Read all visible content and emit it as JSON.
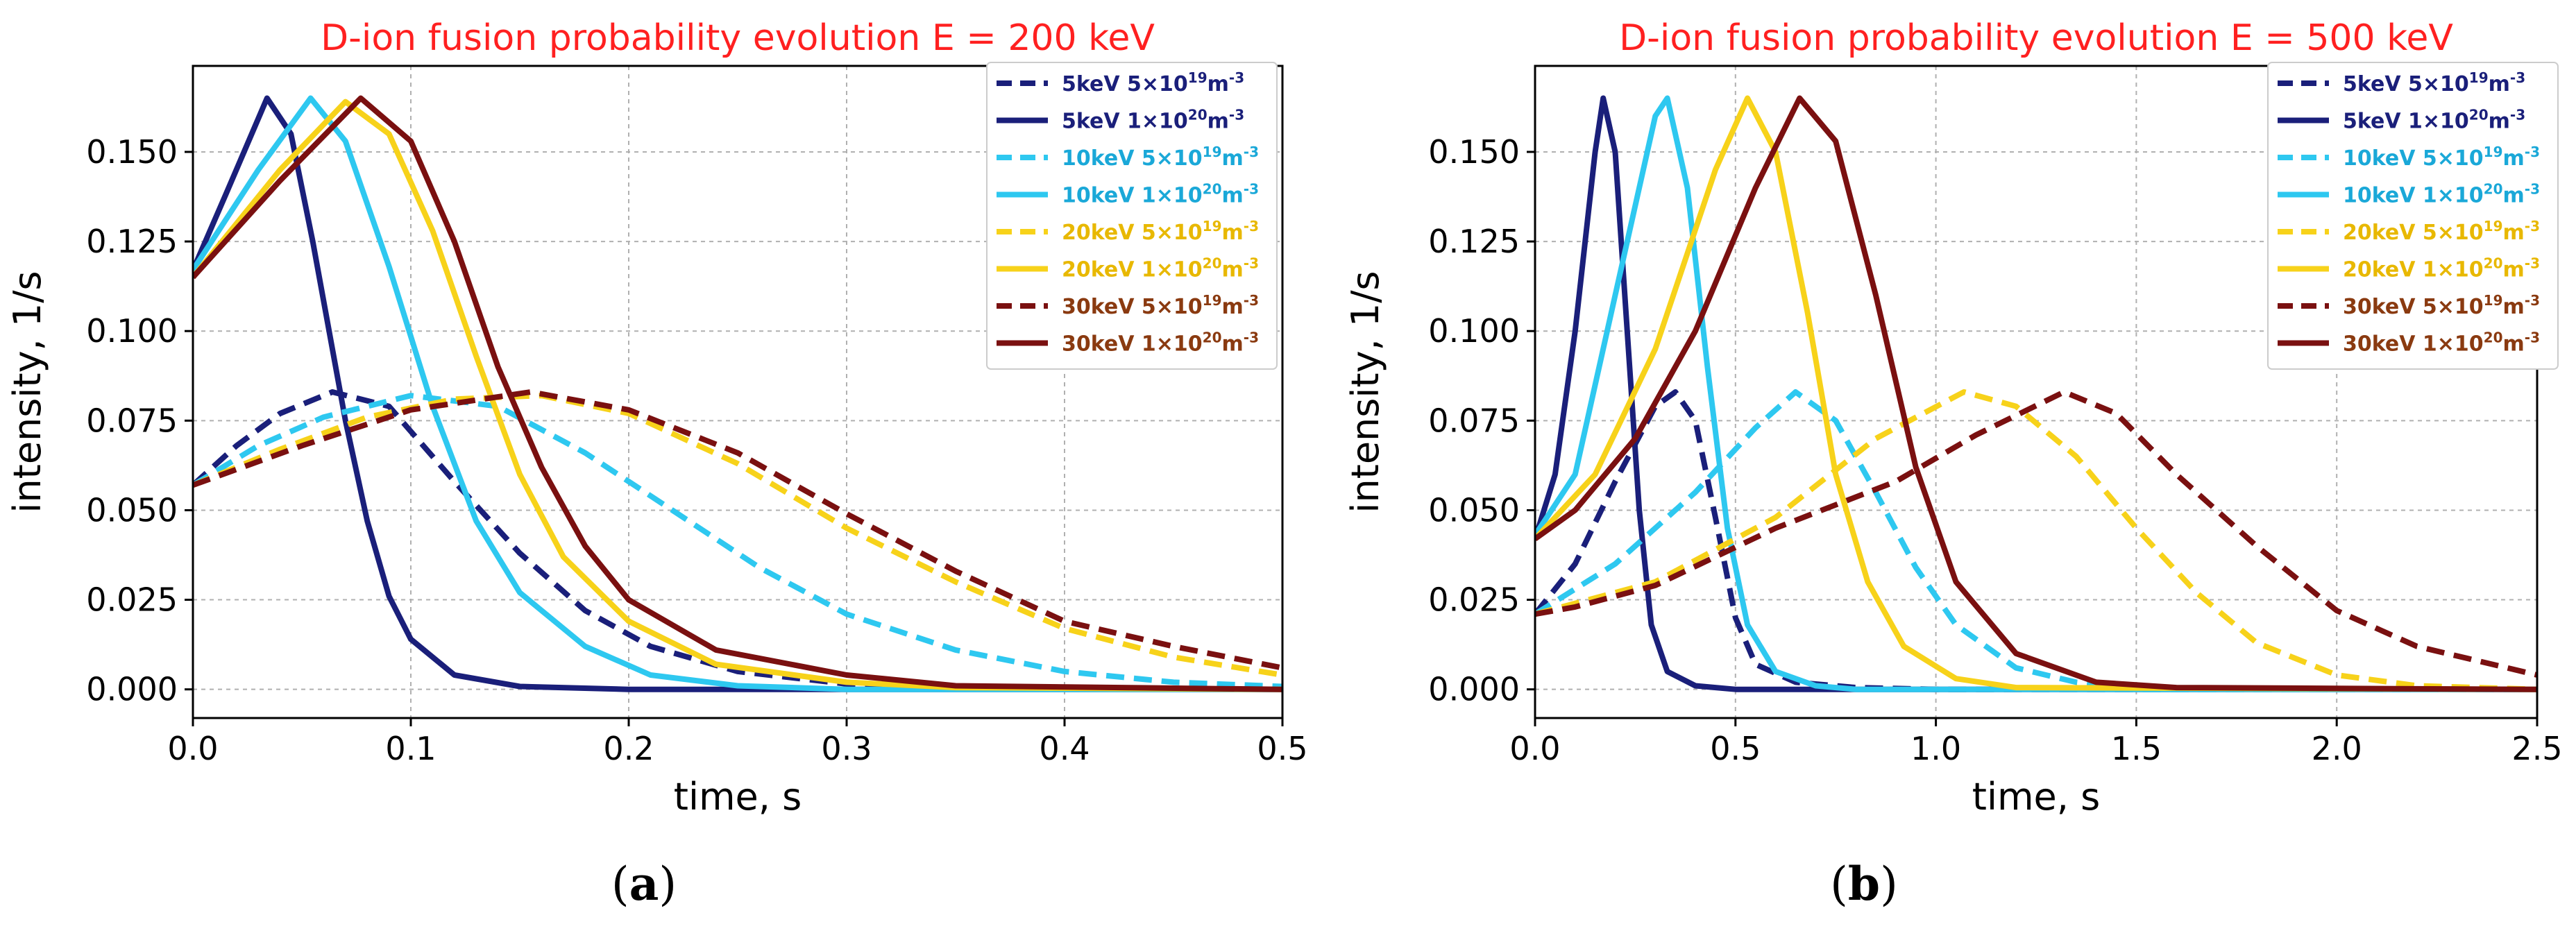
{
  "legend_entries": [
    {
      "key": "5_n1",
      "energy": "5keV",
      "density_base": "5×10",
      "density_exp": "19",
      "density_unit": "m",
      "density_unit_exp": "-3",
      "color": "#1a1f7a",
      "dashed": true
    },
    {
      "key": "5_n2",
      "energy": "5keV",
      "density_base": "1×10",
      "density_exp": "20",
      "density_unit": "m",
      "density_unit_exp": "-3",
      "color": "#1a1f7a",
      "dashed": false
    },
    {
      "key": "10_n1",
      "energy": "10keV",
      "density_base": "5×10",
      "density_exp": "19",
      "density_unit": "m",
      "density_unit_exp": "-3",
      "color": "#2ec8f0",
      "dashed": true
    },
    {
      "key": "10_n2",
      "energy": "10keV",
      "density_base": "1×10",
      "density_exp": "20",
      "density_unit": "m",
      "density_unit_exp": "-3",
      "color": "#2ec8f0",
      "dashed": false
    },
    {
      "key": "20_n1",
      "energy": "20keV",
      "density_base": "5×10",
      "density_exp": "19",
      "density_unit": "m",
      "density_unit_exp": "-3",
      "color": "#f7d21a",
      "dashed": true
    },
    {
      "key": "20_n2",
      "energy": "20keV",
      "density_base": "1×10",
      "density_exp": "20",
      "density_unit": "m",
      "density_unit_exp": "-3",
      "color": "#f7d21a",
      "dashed": false
    },
    {
      "key": "30_n1",
      "energy": "30keV",
      "density_base": "5×10",
      "density_exp": "19",
      "density_unit": "m",
      "density_unit_exp": "-3",
      "color": "#7a1010",
      "dashed": true
    },
    {
      "key": "30_n2",
      "energy": "30keV",
      "density_base": "1×10",
      "density_exp": "20",
      "density_unit": "m",
      "density_unit_exp": "-3",
      "color": "#7a1010",
      "dashed": false
    }
  ],
  "label_colors": {
    "5": "#1a1f7a",
    "10": "#1aa8d8",
    "20": "#e8b800",
    "30": "#8a3a10"
  },
  "title_color": "#ff2020",
  "chart_data": [
    {
      "id": "a",
      "type": "line",
      "subfigure_label": "a",
      "title": "D-ion fusion probability evolution  E = 200 keV",
      "xlabel": "time, s",
      "ylabel": "intensity, 1/s",
      "xlim": [
        0,
        0.5
      ],
      "ylim": [
        -0.008,
        0.174
      ],
      "xticks": [
        0.0,
        0.1,
        0.2,
        0.3,
        0.4,
        0.5
      ],
      "xtick_labels": [
        "0.0",
        "0.1",
        "0.2",
        "0.3",
        "0.4",
        "0.5"
      ],
      "yticks": [
        0,
        0.025,
        0.05,
        0.075,
        0.1,
        0.125,
        0.15
      ],
      "ytick_labels": [
        "0.000",
        "0.025",
        "0.050",
        "0.075",
        "0.100",
        "0.125",
        "0.150"
      ],
      "grid": true,
      "legend_position": "top-right",
      "series": [
        {
          "key": "5_n1",
          "points": [
            [
              0,
              0.057
            ],
            [
              0.02,
              0.068
            ],
            [
              0.04,
              0.077
            ],
            [
              0.064,
              0.083
            ],
            [
              0.09,
              0.079
            ],
            [
              0.12,
              0.058
            ],
            [
              0.15,
              0.038
            ],
            [
              0.18,
              0.022
            ],
            [
              0.21,
              0.012
            ],
            [
              0.25,
              0.005
            ],
            [
              0.3,
              0.0015
            ],
            [
              0.35,
              0.0004
            ],
            [
              0.5,
              0
            ]
          ]
        },
        {
          "key": "5_n2",
          "points": [
            [
              0,
              0.117
            ],
            [
              0.015,
              0.138
            ],
            [
              0.034,
              0.165
            ],
            [
              0.045,
              0.155
            ],
            [
              0.055,
              0.125
            ],
            [
              0.07,
              0.075
            ],
            [
              0.08,
              0.047
            ],
            [
              0.09,
              0.026
            ],
            [
              0.1,
              0.014
            ],
            [
              0.12,
              0.004
            ],
            [
              0.15,
              0.0008
            ],
            [
              0.2,
              0
            ],
            [
              0.5,
              0
            ]
          ]
        },
        {
          "key": "10_n1",
          "points": [
            [
              0,
              0.057
            ],
            [
              0.03,
              0.068
            ],
            [
              0.06,
              0.076
            ],
            [
              0.1,
              0.082
            ],
            [
              0.14,
              0.079
            ],
            [
              0.18,
              0.066
            ],
            [
              0.22,
              0.05
            ],
            [
              0.26,
              0.034
            ],
            [
              0.3,
              0.021
            ],
            [
              0.35,
              0.011
            ],
            [
              0.4,
              0.005
            ],
            [
              0.45,
              0.002
            ],
            [
              0.5,
              0.0008
            ]
          ]
        },
        {
          "key": "10_n2",
          "points": [
            [
              0,
              0.117
            ],
            [
              0.03,
              0.145
            ],
            [
              0.054,
              0.165
            ],
            [
              0.07,
              0.153
            ],
            [
              0.09,
              0.118
            ],
            [
              0.11,
              0.079
            ],
            [
              0.13,
              0.047
            ],
            [
              0.15,
              0.027
            ],
            [
              0.18,
              0.012
            ],
            [
              0.21,
              0.004
            ],
            [
              0.25,
              0.001
            ],
            [
              0.3,
              0
            ],
            [
              0.5,
              0
            ]
          ]
        },
        {
          "key": "20_n1",
          "points": [
            [
              0,
              0.057
            ],
            [
              0.04,
              0.067
            ],
            [
              0.08,
              0.076
            ],
            [
              0.12,
              0.081
            ],
            [
              0.16,
              0.082
            ],
            [
              0.2,
              0.077
            ],
            [
              0.25,
              0.063
            ],
            [
              0.3,
              0.045
            ],
            [
              0.35,
              0.03
            ],
            [
              0.4,
              0.017
            ],
            [
              0.45,
              0.009
            ],
            [
              0.5,
              0.004
            ]
          ]
        },
        {
          "key": "20_n2",
          "points": [
            [
              0,
              0.115
            ],
            [
              0.04,
              0.145
            ],
            [
              0.07,
              0.164
            ],
            [
              0.09,
              0.155
            ],
            [
              0.11,
              0.128
            ],
            [
              0.13,
              0.093
            ],
            [
              0.15,
              0.06
            ],
            [
              0.17,
              0.037
            ],
            [
              0.2,
              0.019
            ],
            [
              0.24,
              0.007
            ],
            [
              0.3,
              0.002
            ],
            [
              0.35,
              0.0005
            ],
            [
              0.5,
              0
            ]
          ]
        },
        {
          "key": "30_n1",
          "points": [
            [
              0,
              0.057
            ],
            [
              0.05,
              0.068
            ],
            [
              0.1,
              0.078
            ],
            [
              0.155,
              0.083
            ],
            [
              0.2,
              0.078
            ],
            [
              0.25,
              0.066
            ],
            [
              0.3,
              0.049
            ],
            [
              0.35,
              0.033
            ],
            [
              0.4,
              0.019
            ],
            [
              0.45,
              0.012
            ],
            [
              0.5,
              0.006
            ]
          ]
        },
        {
          "key": "30_n2",
          "points": [
            [
              0,
              0.115
            ],
            [
              0.04,
              0.142
            ],
            [
              0.077,
              0.165
            ],
            [
              0.1,
              0.153
            ],
            [
              0.12,
              0.125
            ],
            [
              0.14,
              0.09
            ],
            [
              0.16,
              0.062
            ],
            [
              0.18,
              0.04
            ],
            [
              0.2,
              0.025
            ],
            [
              0.24,
              0.011
            ],
            [
              0.3,
              0.004
            ],
            [
              0.35,
              0.001
            ],
            [
              0.5,
              0
            ]
          ]
        }
      ]
    },
    {
      "id": "b",
      "type": "line",
      "subfigure_label": "b",
      "title": "D-ion fusion probability evolution  E = 500 keV",
      "xlabel": "time, s",
      "ylabel": "intensity, 1/s",
      "xlim": [
        0,
        2.5
      ],
      "ylim": [
        -0.008,
        0.174
      ],
      "xticks": [
        0.0,
        0.5,
        1.0,
        1.5,
        2.0,
        2.5
      ],
      "xtick_labels": [
        "0.0",
        "0.5",
        "1.0",
        "1.5",
        "2.0",
        "2.5"
      ],
      "yticks": [
        0,
        0.025,
        0.05,
        0.075,
        0.1,
        0.125,
        0.15
      ],
      "ytick_labels": [
        "0.000",
        "0.025",
        "0.050",
        "0.075",
        "0.100",
        "0.125",
        "0.150"
      ],
      "grid": true,
      "legend_position": "top-right",
      "series": [
        {
          "key": "5_n1",
          "points": [
            [
              0,
              0.021
            ],
            [
              0.1,
              0.035
            ],
            [
              0.2,
              0.058
            ],
            [
              0.3,
              0.079
            ],
            [
              0.35,
              0.083
            ],
            [
              0.4,
              0.075
            ],
            [
              0.45,
              0.048
            ],
            [
              0.5,
              0.02
            ],
            [
              0.55,
              0.007
            ],
            [
              0.65,
              0.002
            ],
            [
              0.8,
              0.0005
            ],
            [
              1.0,
              0
            ],
            [
              2.5,
              0
            ]
          ]
        },
        {
          "key": "5_n2",
          "points": [
            [
              0,
              0.042
            ],
            [
              0.05,
              0.06
            ],
            [
              0.1,
              0.1
            ],
            [
              0.15,
              0.15
            ],
            [
              0.17,
              0.165
            ],
            [
              0.2,
              0.15
            ],
            [
              0.23,
              0.1
            ],
            [
              0.26,
              0.05
            ],
            [
              0.29,
              0.018
            ],
            [
              0.33,
              0.005
            ],
            [
              0.4,
              0.001
            ],
            [
              0.5,
              0
            ],
            [
              2.5,
              0
            ]
          ]
        },
        {
          "key": "10_n1",
          "points": [
            [
              0,
              0.021
            ],
            [
              0.2,
              0.035
            ],
            [
              0.4,
              0.055
            ],
            [
              0.55,
              0.073
            ],
            [
              0.65,
              0.083
            ],
            [
              0.75,
              0.075
            ],
            [
              0.85,
              0.055
            ],
            [
              0.95,
              0.034
            ],
            [
              1.05,
              0.018
            ],
            [
              1.2,
              0.006
            ],
            [
              1.35,
              0.002
            ],
            [
              1.5,
              0
            ],
            [
              2.5,
              0
            ]
          ]
        },
        {
          "key": "10_n2",
          "points": [
            [
              0,
              0.043
            ],
            [
              0.1,
              0.06
            ],
            [
              0.2,
              0.11
            ],
            [
              0.3,
              0.16
            ],
            [
              0.33,
              0.165
            ],
            [
              0.38,
              0.14
            ],
            [
              0.43,
              0.09
            ],
            [
              0.48,
              0.045
            ],
            [
              0.53,
              0.018
            ],
            [
              0.6,
              0.005
            ],
            [
              0.7,
              0.001
            ],
            [
              0.8,
              0
            ],
            [
              2.5,
              0
            ]
          ]
        },
        {
          "key": "20_n1",
          "points": [
            [
              0,
              0.021
            ],
            [
              0.3,
              0.03
            ],
            [
              0.6,
              0.048
            ],
            [
              0.85,
              0.07
            ],
            [
              1.07,
              0.083
            ],
            [
              1.2,
              0.079
            ],
            [
              1.35,
              0.065
            ],
            [
              1.5,
              0.045
            ],
            [
              1.65,
              0.027
            ],
            [
              1.8,
              0.013
            ],
            [
              2.0,
              0.004
            ],
            [
              2.2,
              0.001
            ],
            [
              2.5,
              0
            ]
          ]
        },
        {
          "key": "20_n2",
          "points": [
            [
              0,
              0.042
            ],
            [
              0.15,
              0.06
            ],
            [
              0.3,
              0.095
            ],
            [
              0.45,
              0.145
            ],
            [
              0.53,
              0.165
            ],
            [
              0.6,
              0.15
            ],
            [
              0.68,
              0.105
            ],
            [
              0.75,
              0.06
            ],
            [
              0.83,
              0.03
            ],
            [
              0.92,
              0.012
            ],
            [
              1.05,
              0.003
            ],
            [
              1.2,
              0.0005
            ],
            [
              2.5,
              0
            ]
          ]
        },
        {
          "key": "30_n1",
          "points": [
            [
              0,
              0.021
            ],
            [
              0.1,
              0.023
            ],
            [
              0.3,
              0.029
            ],
            [
              0.6,
              0.045
            ],
            [
              0.9,
              0.058
            ],
            [
              1.1,
              0.071
            ],
            [
              1.32,
              0.083
            ],
            [
              1.45,
              0.077
            ],
            [
              1.6,
              0.06
            ],
            [
              1.8,
              0.04
            ],
            [
              2.0,
              0.022
            ],
            [
              2.2,
              0.012
            ],
            [
              2.5,
              0.004
            ]
          ]
        },
        {
          "key": "30_n2",
          "points": [
            [
              0,
              0.042
            ],
            [
              0.1,
              0.05
            ],
            [
              0.25,
              0.07
            ],
            [
              0.4,
              0.1
            ],
            [
              0.55,
              0.14
            ],
            [
              0.66,
              0.165
            ],
            [
              0.75,
              0.153
            ],
            [
              0.85,
              0.11
            ],
            [
              0.95,
              0.062
            ],
            [
              1.05,
              0.03
            ],
            [
              1.2,
              0.01
            ],
            [
              1.4,
              0.002
            ],
            [
              1.6,
              0.0005
            ],
            [
              2.5,
              0
            ]
          ]
        }
      ]
    }
  ]
}
